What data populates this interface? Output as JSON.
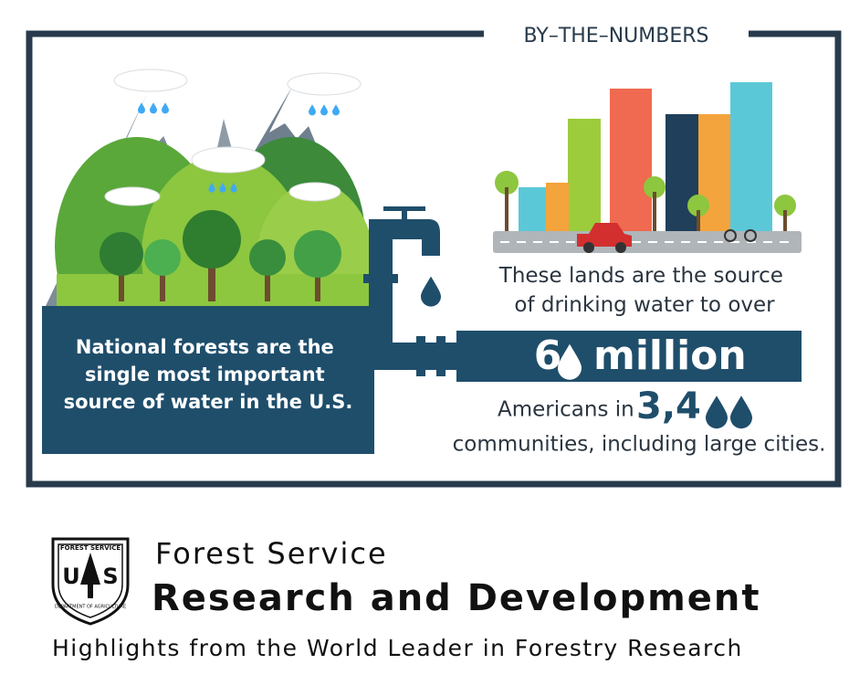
{
  "header": {
    "title": "BY–THE–NUMBERS"
  },
  "left_statement": [
    "National forests are the",
    "single most important",
    "source of water in the U.S."
  ],
  "right_intro": [
    "These lands are the source",
    "of drinking water to over"
  ],
  "big_number": {
    "lead": "6",
    "tail": "million"
  },
  "communities": {
    "prefix": "Americans in",
    "number_lead": "3,4",
    "line2": "communities, including large cities."
  },
  "logo": {
    "top": "FOREST SERVICE",
    "left": "U",
    "right": "S",
    "bottom": "DEPARTMENT OF AGRICULTURE"
  },
  "footer": {
    "org": "Forest Service",
    "division": "Research and Development",
    "tagline": "Highlights from the World Leader in Forestry Research"
  }
}
